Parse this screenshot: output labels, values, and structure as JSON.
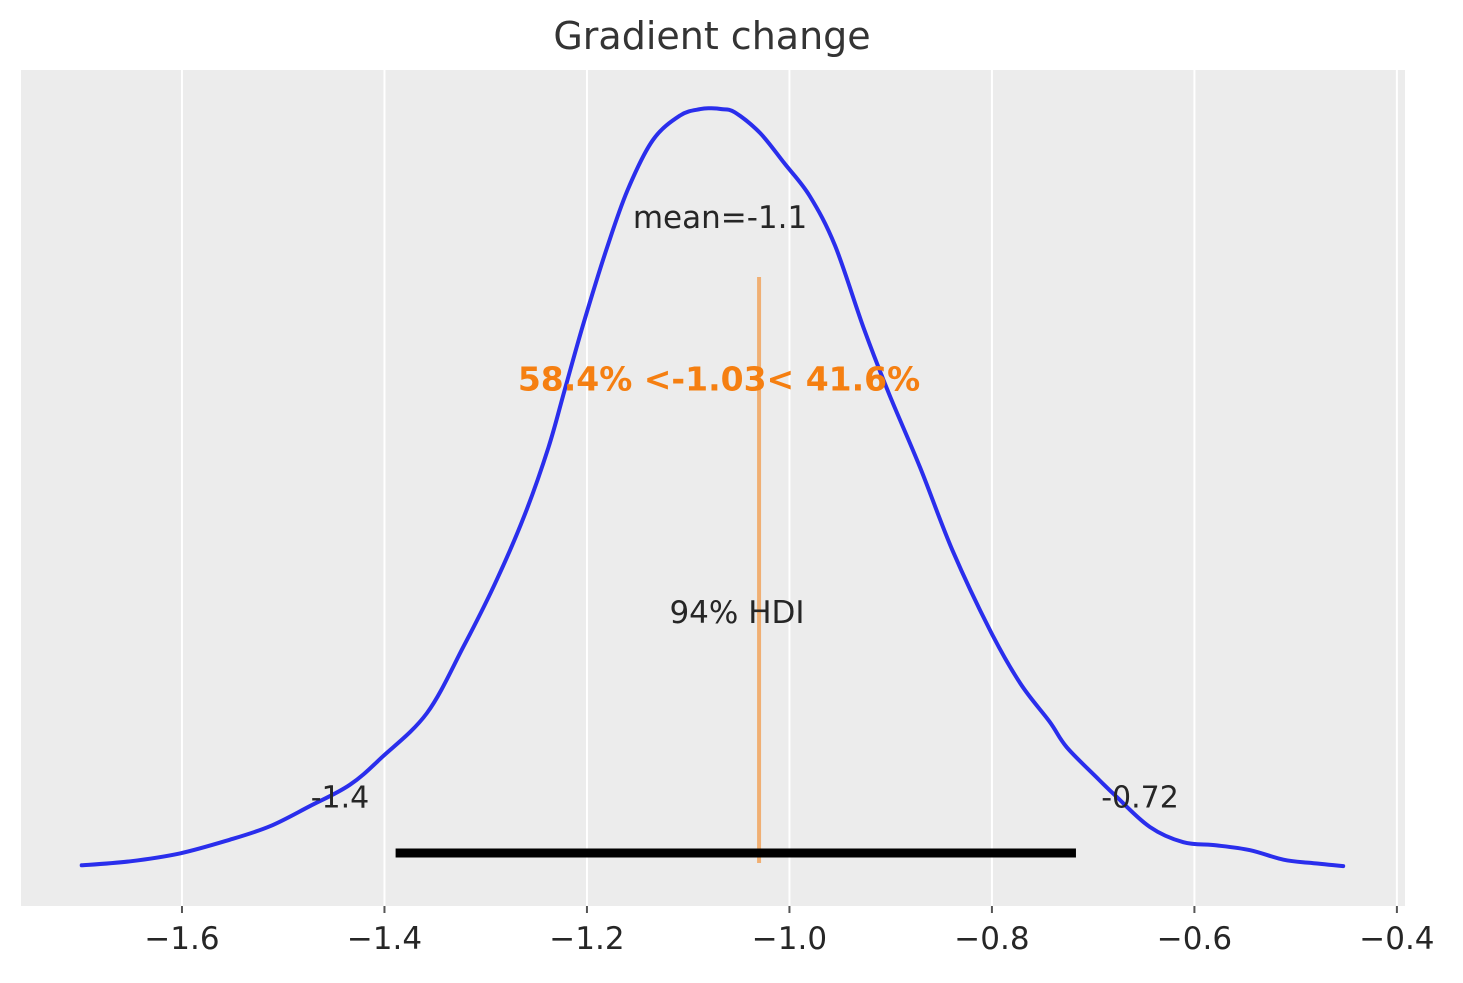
{
  "figure": {
    "title": "Gradient change"
  },
  "chart_data": {
    "type": "line",
    "subtype": "kde-posterior-density",
    "title": "Gradient change",
    "xlabel": "",
    "ylabel": "",
    "grid": true,
    "legend": "none",
    "xlim": [
      -1.759,
      -0.392
    ],
    "density_scale": [
      0,
      1.048
    ],
    "x_ticks": {
      "values": [
        -1.6,
        -1.4,
        -1.2,
        -1.0,
        -0.8,
        -0.6,
        -0.4
      ],
      "labels": [
        "−1.6",
        "−1.4",
        "−1.2",
        "−1.0",
        "−0.8",
        "−0.6",
        "−0.4"
      ]
    },
    "kde": {
      "x": [
        -1.699,
        -1.651,
        -1.602,
        -1.553,
        -1.513,
        -1.474,
        -1.434,
        -1.402,
        -1.358,
        -1.322,
        -1.289,
        -1.261,
        -1.238,
        -1.222,
        -1.203,
        -1.18,
        -1.16,
        -1.135,
        -1.108,
        -1.088,
        -1.077,
        -1.067,
        -1.054,
        -1.029,
        -1.005,
        -0.98,
        -0.955,
        -0.926,
        -0.901,
        -0.871,
        -0.839,
        -0.802,
        -0.772,
        -0.743,
        -0.726,
        -0.694,
        -0.677,
        -0.644,
        -0.611,
        -0.578,
        -0.545,
        -0.512,
        -0.485,
        -0.453
      ],
      "density": [
        0.051,
        0.056,
        0.066,
        0.083,
        0.1,
        0.125,
        0.152,
        0.187,
        0.242,
        0.325,
        0.409,
        0.492,
        0.575,
        0.647,
        0.732,
        0.826,
        0.897,
        0.96,
        0.991,
        0.999,
        1.0,
        0.999,
        0.995,
        0.969,
        0.931,
        0.89,
        0.828,
        0.722,
        0.64,
        0.55,
        0.446,
        0.346,
        0.279,
        0.231,
        0.199,
        0.158,
        0.137,
        0.099,
        0.08,
        0.076,
        0.07,
        0.058,
        0.054,
        0.05
      ]
    },
    "annotations": {
      "mean": {
        "label": "mean=-1.1",
        "value": -1.1
      },
      "ref_value": {
        "value": -1.03,
        "label": "58.4% <-1.03< 41.6%",
        "pct_below": 58.4,
        "pct_above": 41.6
      },
      "hdi": {
        "probability": "94% HDI",
        "lower_label": "-1.4",
        "upper_label": "-0.72",
        "lower": -1.4,
        "upper": -0.72,
        "bar_start": -1.389,
        "bar_end": -0.717
      }
    },
    "colors": {
      "curve": "#2a2eec",
      "ref_line": "#f57f11",
      "ref_text": "#f57f11",
      "hdi_bar": "#000000",
      "axes_background": "#ececec",
      "gridline": "#ffffff",
      "tick_mark": "#555555",
      "text": "#262626",
      "title": "#343434"
    }
  }
}
